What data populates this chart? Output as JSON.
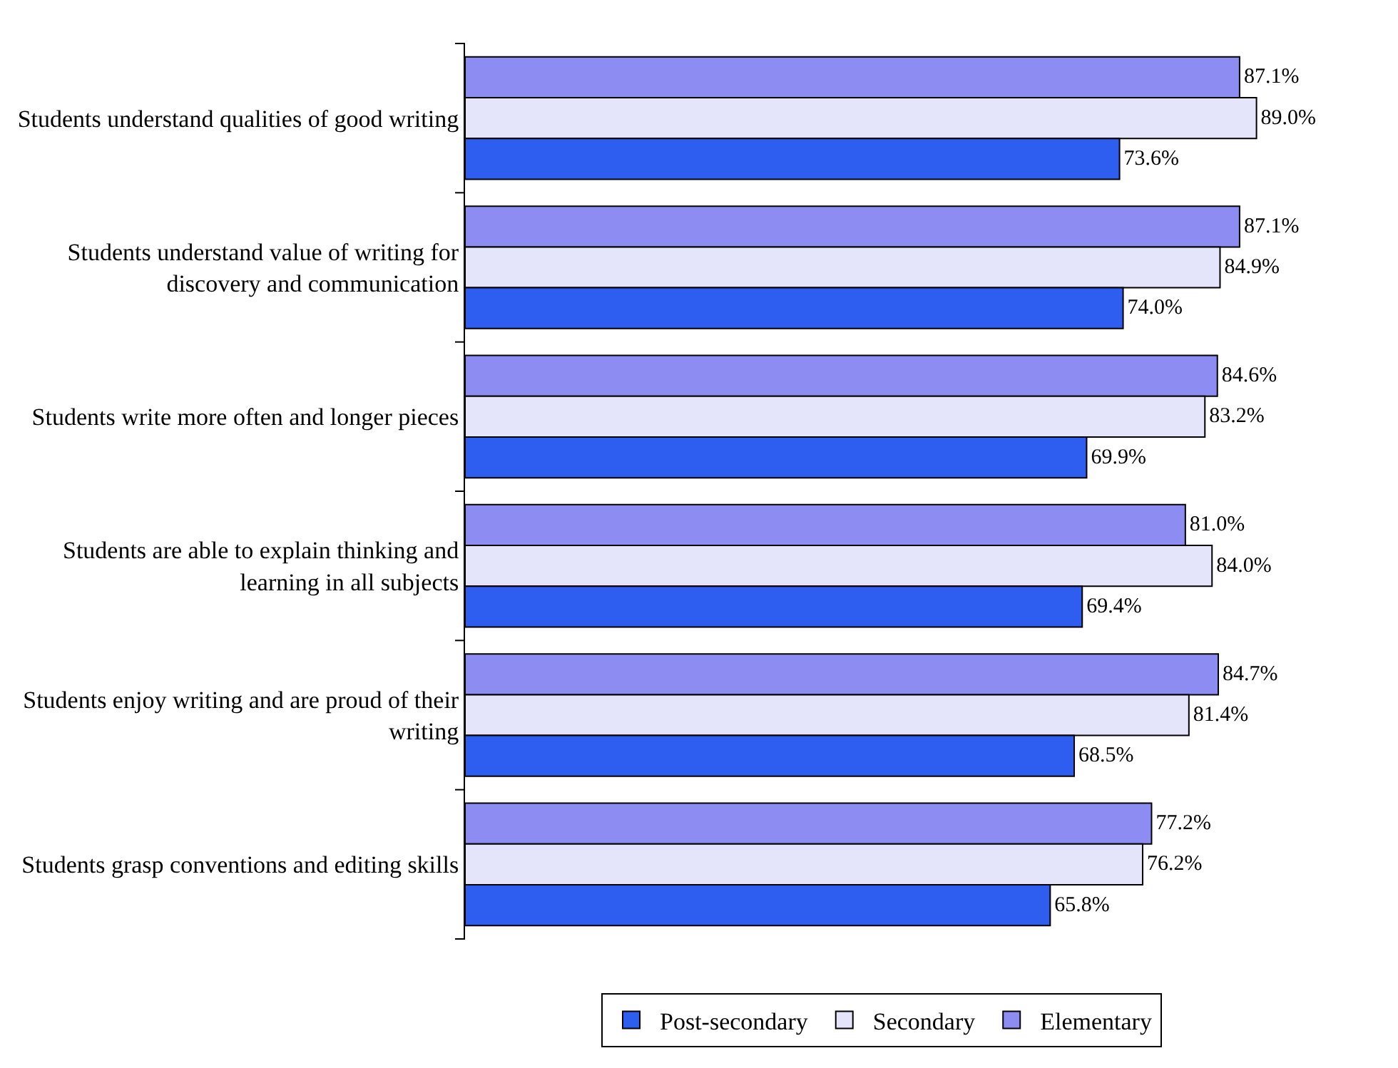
{
  "chart_data": {
    "type": "bar",
    "orientation": "horizontal",
    "categories": [
      "Students understand qualities of good writing",
      "Students understand value of writing for discovery and communication",
      "Students write more often and longer pieces",
      "Students are able to explain thinking and learning in all subjects",
      "Students enjoy writing and are proud of their writing",
      "Students grasp conventions and editing skills"
    ],
    "series": [
      {
        "name": "Elementary",
        "color": "#8c8cf2",
        "values": [
          87.1,
          87.1,
          84.6,
          81.0,
          84.7,
          77.2
        ],
        "value_labels": [
          "87.1%",
          "87.1%",
          "84.6%",
          "81.0%",
          "84.7%",
          "77.2%"
        ]
      },
      {
        "name": "Secondary",
        "color": "#e4e4fa",
        "values": [
          89.0,
          84.9,
          83.2,
          84.0,
          81.4,
          76.2
        ],
        "value_labels": [
          "89.0%",
          "84.9%",
          "83.2%",
          "84.0%",
          "81.4%",
          "76.2%"
        ]
      },
      {
        "name": "Post-secondary",
        "color": "#2e5ef0",
        "values": [
          73.6,
          74.0,
          69.9,
          69.4,
          68.5,
          65.8
        ],
        "value_labels": [
          "73.6%",
          "74.0%",
          "69.9%",
          "69.4%",
          "68.5%",
          "65.8%"
        ]
      }
    ],
    "legend": "bottom"
  }
}
